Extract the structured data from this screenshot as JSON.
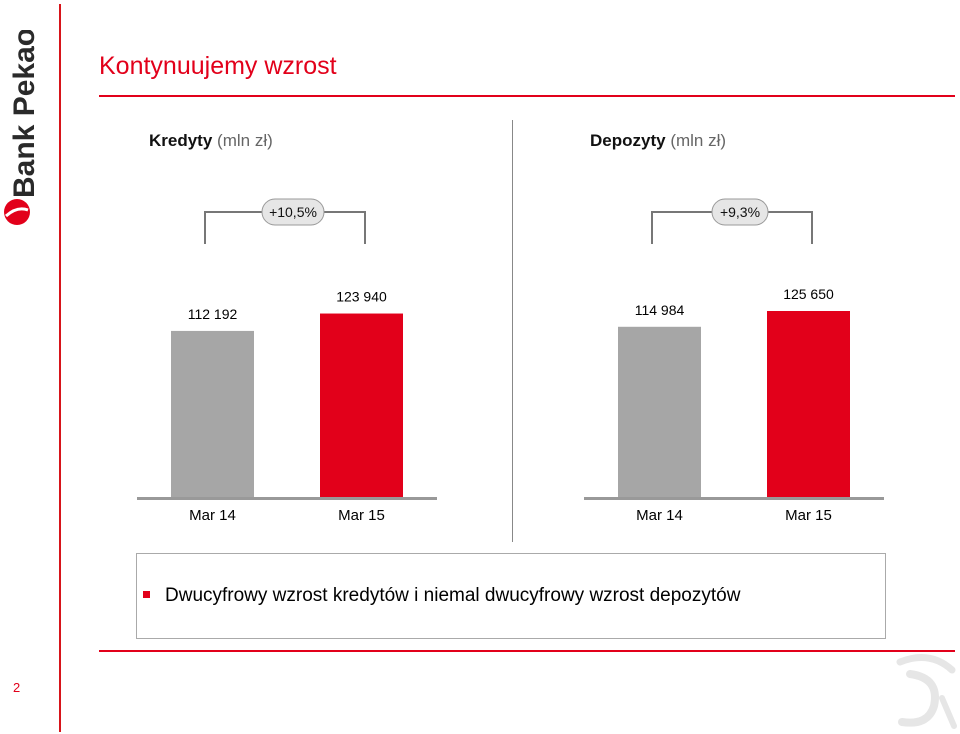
{
  "brand": {
    "logo_text": "Bank Pekao",
    "accent": "#e2001a"
  },
  "page": {
    "title": "Kontynuujemy wzrost",
    "number": "2"
  },
  "chart_data": [
    {
      "type": "bar",
      "title": "Kredyty",
      "unit": "(mln zł)",
      "categories": [
        "Mar 14",
        "Mar 15"
      ],
      "values": [
        112192,
        123940
      ],
      "value_labels": [
        "112 192",
        "123 940"
      ],
      "colors": [
        "#a6a6a6",
        "#e2001a"
      ],
      "growth_label": "+10,5%"
    },
    {
      "type": "bar",
      "title": "Depozyty",
      "unit": "(mln zł)",
      "categories": [
        "Mar 14",
        "Mar 15"
      ],
      "values": [
        114984,
        125650
      ],
      "value_labels": [
        "114 984",
        "125 650"
      ],
      "colors": [
        "#a6a6a6",
        "#e2001a"
      ],
      "growth_label": "+9,3%"
    }
  ],
  "note": {
    "text": "Dwucyfrowy wzrost kredytów i niemal dwucyfrowy wzrost depozytów"
  }
}
